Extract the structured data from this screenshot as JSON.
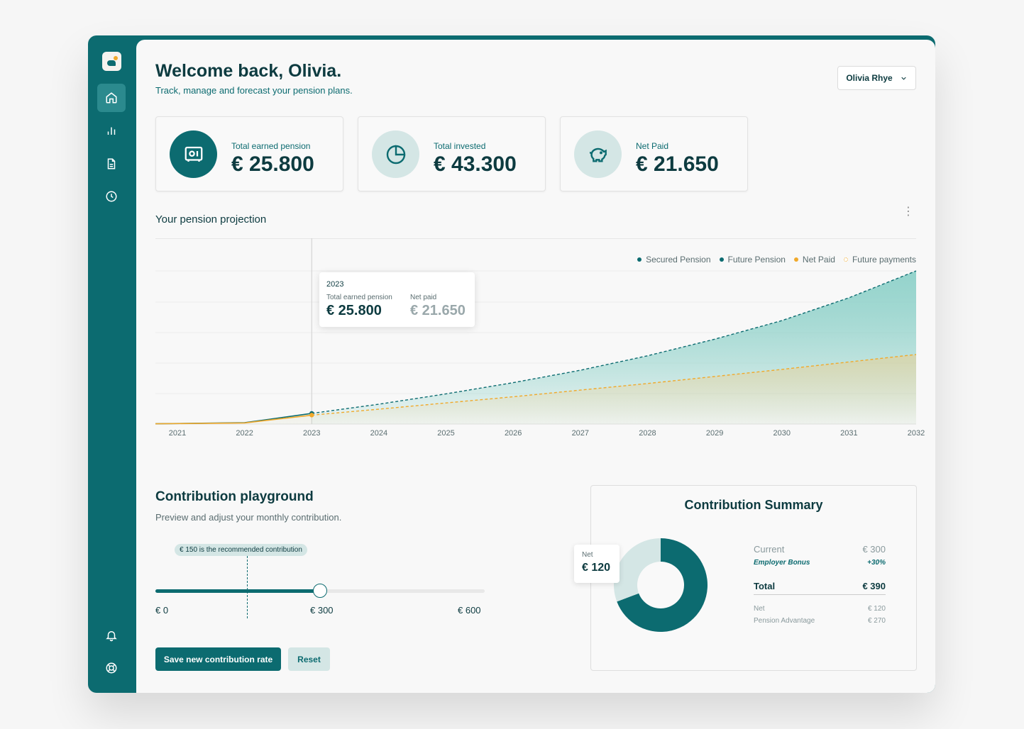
{
  "header": {
    "title": "Welcome back, Olivia.",
    "subtitle": "Track, manage and forecast your pension plans.",
    "user_name": "Olivia Rhye"
  },
  "sidebar": {
    "items": [
      {
        "name": "home-icon",
        "active": true
      },
      {
        "name": "bar-chart-icon",
        "active": false
      },
      {
        "name": "document-icon",
        "active": false
      },
      {
        "name": "clock-icon",
        "active": false
      }
    ],
    "bottom_items": [
      {
        "name": "bell-icon"
      },
      {
        "name": "life-buoy-icon"
      }
    ]
  },
  "stats": [
    {
      "label": "Total earned pension",
      "value": "€ 25.800",
      "icon": "safe-icon"
    },
    {
      "label": "Total invested",
      "value": "€ 43.300",
      "icon": "pie-chart-icon"
    },
    {
      "label": "Net Paid",
      "value": "€ 21.650",
      "icon": "piggy-bank-icon"
    }
  ],
  "projection": {
    "title": "Your pension projection",
    "legend": [
      "Secured Pension",
      "Future Pension",
      "Net Paid",
      "Future payments"
    ],
    "tooltip": {
      "year": "2023",
      "label_1": "Total earned pension",
      "value_1": "€ 25.800",
      "label_2": "Net paid",
      "value_2": "€ 21.650"
    }
  },
  "chart_data": {
    "type": "area",
    "title": "",
    "xlabel": "",
    "ylabel": "",
    "categories": [
      "2021",
      "2022",
      "2023",
      "2024",
      "2025",
      "2026",
      "2027",
      "2028",
      "2029",
      "2030",
      "2031",
      "2032"
    ],
    "series": [
      {
        "name": "Secured Pension",
        "values": [
          600,
          3200,
          25800,
          null,
          null,
          null,
          null,
          null,
          null,
          null,
          null,
          null
        ]
      },
      {
        "name": "Future Pension",
        "values": [
          null,
          null,
          25800,
          48000,
          73000,
          100000,
          130000,
          165000,
          205000,
          250000,
          305000,
          370000
        ]
      },
      {
        "name": "Net Paid",
        "values": [
          600,
          2800,
          21650,
          null,
          null,
          null,
          null,
          null,
          null,
          null,
          null,
          null
        ]
      },
      {
        "name": "Future payments",
        "values": [
          null,
          null,
          21650,
          36000,
          51000,
          66000,
          82000,
          98000,
          115000,
          132000,
          150000,
          168000
        ]
      }
    ],
    "colors": {
      "secured": "#0c6b70",
      "future": "#0c6b70",
      "net": "#f0a92b",
      "future_payments": "#f0a92b"
    },
    "grid": true,
    "legend_position": "top-right"
  },
  "playground": {
    "title": "Contribution playground",
    "subtitle": "Preview and adjust your monthly contribution.",
    "recommendation": "€ 150 is the recommended contribution",
    "min_label": "€ 0",
    "current_label": "€ 300",
    "max_label": "€ 600",
    "slider_min": 0,
    "slider_max": 600,
    "slider_value": 300,
    "recommended_value": 150,
    "save_label": "Save new contribution rate",
    "reset_label": "Reset"
  },
  "summary": {
    "title": "Contribution Summary",
    "net_tag_label": "Net",
    "net_tag_value": "€ 120",
    "current_label": "Current",
    "current_value": "€ 300",
    "bonus_label": "Employer Bonus",
    "bonus_value": "+30%",
    "total_label": "Total",
    "total_value": "€ 390",
    "net_label": "Net",
    "net_value": "€ 120",
    "advantage_label": "Pension Advantage",
    "advantage_value": "€ 270",
    "donut": {
      "net": 120,
      "advantage": 270
    }
  }
}
